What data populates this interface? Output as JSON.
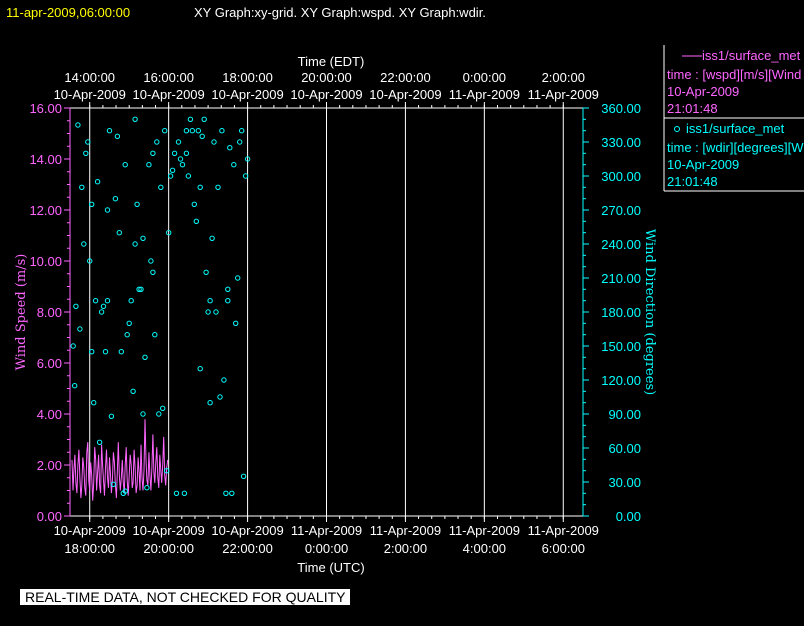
{
  "header": {
    "timestamp": "11-apr-2009,06:00:00",
    "graphs": "XY Graph:xy-grid.  XY Graph:wspd.  XY Graph:wdir."
  },
  "footer": {
    "quality_banner": "REAL-TIME DATA, NOT CHECKED FOR QUALITY"
  },
  "colors": {
    "wspd": "#ff66ff",
    "wdir": "#00ffff",
    "axis_text": "#ffffff",
    "background": "#000000",
    "title": "#ffff00"
  },
  "legend": [
    {
      "marker": "line",
      "name": "iss1/surface_met",
      "desc": "time : [wspd][m/s][Wind",
      "date": "10-Apr-2009",
      "time": "21:01:48"
    },
    {
      "marker": "circle",
      "name": "iss1/surface_met",
      "desc": "time : [wdir][degrees][W",
      "date": "10-Apr-2009",
      "time": "21:01:48"
    }
  ],
  "chart_data": {
    "type": "line",
    "top_axis_title": "Time (EDT)",
    "bottom_axis_title": "Time (UTC)",
    "ylabel_left": "Wind Speed (m/s)",
    "ylabel_right": "Wind Direction (degrees)",
    "x_range_utc_hours": [
      17.5,
      30.5
    ],
    "ylim_left": [
      0,
      16
    ],
    "ylim_right": [
      0,
      360
    ],
    "grid": true,
    "bottom_ticks": [
      {
        "date": "10-Apr-2009",
        "time": "18:00:00",
        "hour": 18
      },
      {
        "date": "10-Apr-2009",
        "time": "20:00:00",
        "hour": 20
      },
      {
        "date": "10-Apr-2009",
        "time": "22:00:00",
        "hour": 22
      },
      {
        "date": "11-Apr-2009",
        "time": "0:00:00",
        "hour": 24
      },
      {
        "date": "11-Apr-2009",
        "time": "2:00:00",
        "hour": 26
      },
      {
        "date": "11-Apr-2009",
        "time": "4:00:00",
        "hour": 28
      },
      {
        "date": "11-Apr-2009",
        "time": "6:00:00",
        "hour": 30
      }
    ],
    "top_ticks": [
      {
        "time": "14:00:00",
        "date": "10-Apr-2009",
        "hour": 18
      },
      {
        "time": "16:00:00",
        "date": "10-Apr-2009",
        "hour": 20
      },
      {
        "time": "18:00:00",
        "date": "10-Apr-2009",
        "hour": 22
      },
      {
        "time": "20:00:00",
        "date": "10-Apr-2009",
        "hour": 24
      },
      {
        "time": "22:00:00",
        "date": "10-Apr-2009",
        "hour": 26
      },
      {
        "time": "0:00:00",
        "date": "11-Apr-2009",
        "hour": 28
      },
      {
        "time": "2:00:00",
        "date": "11-Apr-2009",
        "hour": 30
      }
    ],
    "left_ticks": [
      "0.00",
      "2.00",
      "4.00",
      "6.00",
      "8.00",
      "10.00",
      "12.00",
      "14.00",
      "16.00"
    ],
    "right_ticks": [
      "0.00",
      "30.00",
      "60.00",
      "90.00",
      "120.00",
      "150.00",
      "180.00",
      "210.00",
      "240.00",
      "270.00",
      "300.00",
      "330.00",
      "360.00"
    ],
    "series": [
      {
        "name": "iss1/surface_met",
        "axis": "left",
        "style": "line",
        "x_start_hour": 17.55,
        "x_step_hour": 0.025,
        "y": [
          2.2,
          1.0,
          1.8,
          2.4,
          1.3,
          0.9,
          2.0,
          2.6,
          1.5,
          0.7,
          1.2,
          2.3,
          1.9,
          1.1,
          0.8,
          2.5,
          2.9,
          1.4,
          1.0,
          2.1,
          1.6,
          0.6,
          1.3,
          2.7,
          2.2,
          1.0,
          1.7,
          2.4,
          1.2,
          0.9,
          2.8,
          2.0,
          1.4,
          0.8,
          1.9,
          2.6,
          1.5,
          1.1,
          2.3,
          1.7,
          0.9,
          1.4,
          2.5,
          2.1,
          1.2,
          0.7,
          1.8,
          2.9,
          1.6,
          1.0,
          1.5,
          2.2,
          1.3,
          0.9,
          2.0,
          2.7,
          1.4,
          0.8,
          1.6,
          2.4,
          2.0,
          1.1,
          1.3,
          2.6,
          1.9,
          0.9,
          1.2,
          2.3,
          1.7,
          1.0,
          2.8,
          1.5,
          1.0,
          1.8,
          3.8,
          2.2,
          1.4,
          1.2,
          2.5,
          1.6,
          1.0,
          1.9,
          3.2,
          1.7,
          1.3,
          2.1,
          2.7,
          1.5,
          1.1,
          2.4,
          1.8,
          1.3,
          2.0,
          3.1,
          1.6,
          1.2,
          1.9,
          2.2
        ]
      },
      {
        "name": "iss1/surface_met",
        "axis": "right",
        "style": "markers",
        "points": [
          [
            17.58,
            150
          ],
          [
            17.62,
            115
          ],
          [
            17.65,
            185
          ],
          [
            17.7,
            345
          ],
          [
            17.75,
            165
          ],
          [
            17.8,
            290
          ],
          [
            17.85,
            240
          ],
          [
            17.9,
            320
          ],
          [
            17.95,
            330
          ],
          [
            18.0,
            225
          ],
          [
            18.05,
            145
          ],
          [
            18.1,
            100
          ],
          [
            18.15,
            190
          ],
          [
            18.2,
            295
          ],
          [
            18.25,
            65
          ],
          [
            18.3,
            180
          ],
          [
            18.35,
            185
          ],
          [
            18.4,
            145
          ],
          [
            18.45,
            190
          ],
          [
            18.5,
            340
          ],
          [
            18.55,
            88
          ],
          [
            18.6,
            28
          ],
          [
            18.65,
            280
          ],
          [
            18.7,
            335
          ],
          [
            18.75,
            250
          ],
          [
            18.8,
            145
          ],
          [
            18.85,
            20
          ],
          [
            18.9,
            22
          ],
          [
            18.95,
            160
          ],
          [
            19.0,
            170
          ],
          [
            19.05,
            190
          ],
          [
            19.1,
            110
          ],
          [
            19.15,
            240
          ],
          [
            19.2,
            275
          ],
          [
            19.25,
            200
          ],
          [
            19.3,
            200
          ],
          [
            19.35,
            90
          ],
          [
            19.4,
            140
          ],
          [
            19.45,
            25
          ],
          [
            19.5,
            310
          ],
          [
            19.55,
            225
          ],
          [
            19.6,
            215
          ],
          [
            19.65,
            160
          ],
          [
            19.7,
            330
          ],
          [
            19.75,
            90
          ],
          [
            19.8,
            290
          ],
          [
            19.85,
            95
          ],
          [
            19.9,
            340
          ],
          [
            19.95,
            40
          ],
          [
            20.0,
            250
          ],
          [
            20.05,
            300
          ],
          [
            20.1,
            305
          ],
          [
            20.15,
            320
          ],
          [
            20.2,
            20
          ],
          [
            20.25,
            330
          ],
          [
            20.3,
            315
          ],
          [
            20.35,
            310
          ],
          [
            20.4,
            20
          ],
          [
            20.45,
            320
          ],
          [
            20.5,
            300
          ],
          [
            20.55,
            350
          ],
          [
            20.6,
            340
          ],
          [
            20.65,
            275
          ],
          [
            20.7,
            260
          ],
          [
            20.75,
            340
          ],
          [
            20.8,
            130
          ],
          [
            20.85,
            335
          ],
          [
            20.9,
            350
          ],
          [
            20.95,
            215
          ],
          [
            21.0,
            180
          ],
          [
            21.05,
            190
          ],
          [
            21.1,
            245
          ],
          [
            21.15,
            330
          ],
          [
            21.2,
            180
          ],
          [
            21.25,
            290
          ],
          [
            21.3,
            105
          ],
          [
            21.35,
            340
          ],
          [
            21.4,
            120
          ],
          [
            21.45,
            20
          ],
          [
            21.5,
            200
          ],
          [
            21.55,
            325
          ],
          [
            21.6,
            20
          ],
          [
            21.65,
            310
          ],
          [
            21.7,
            170
          ],
          [
            21.75,
            210
          ],
          [
            21.8,
            330
          ],
          [
            21.85,
            340
          ],
          [
            21.9,
            35
          ],
          [
            21.95,
            300
          ],
          [
            22.0,
            315
          ],
          [
            18.05,
            275
          ],
          [
            18.45,
            270
          ],
          [
            19.15,
            350
          ],
          [
            19.6,
            320
          ],
          [
            20.45,
            340
          ],
          [
            21.05,
            100
          ],
          [
            19.35,
            245
          ],
          [
            18.9,
            310
          ],
          [
            20.8,
            290
          ],
          [
            21.5,
            190
          ]
        ]
      }
    ]
  }
}
